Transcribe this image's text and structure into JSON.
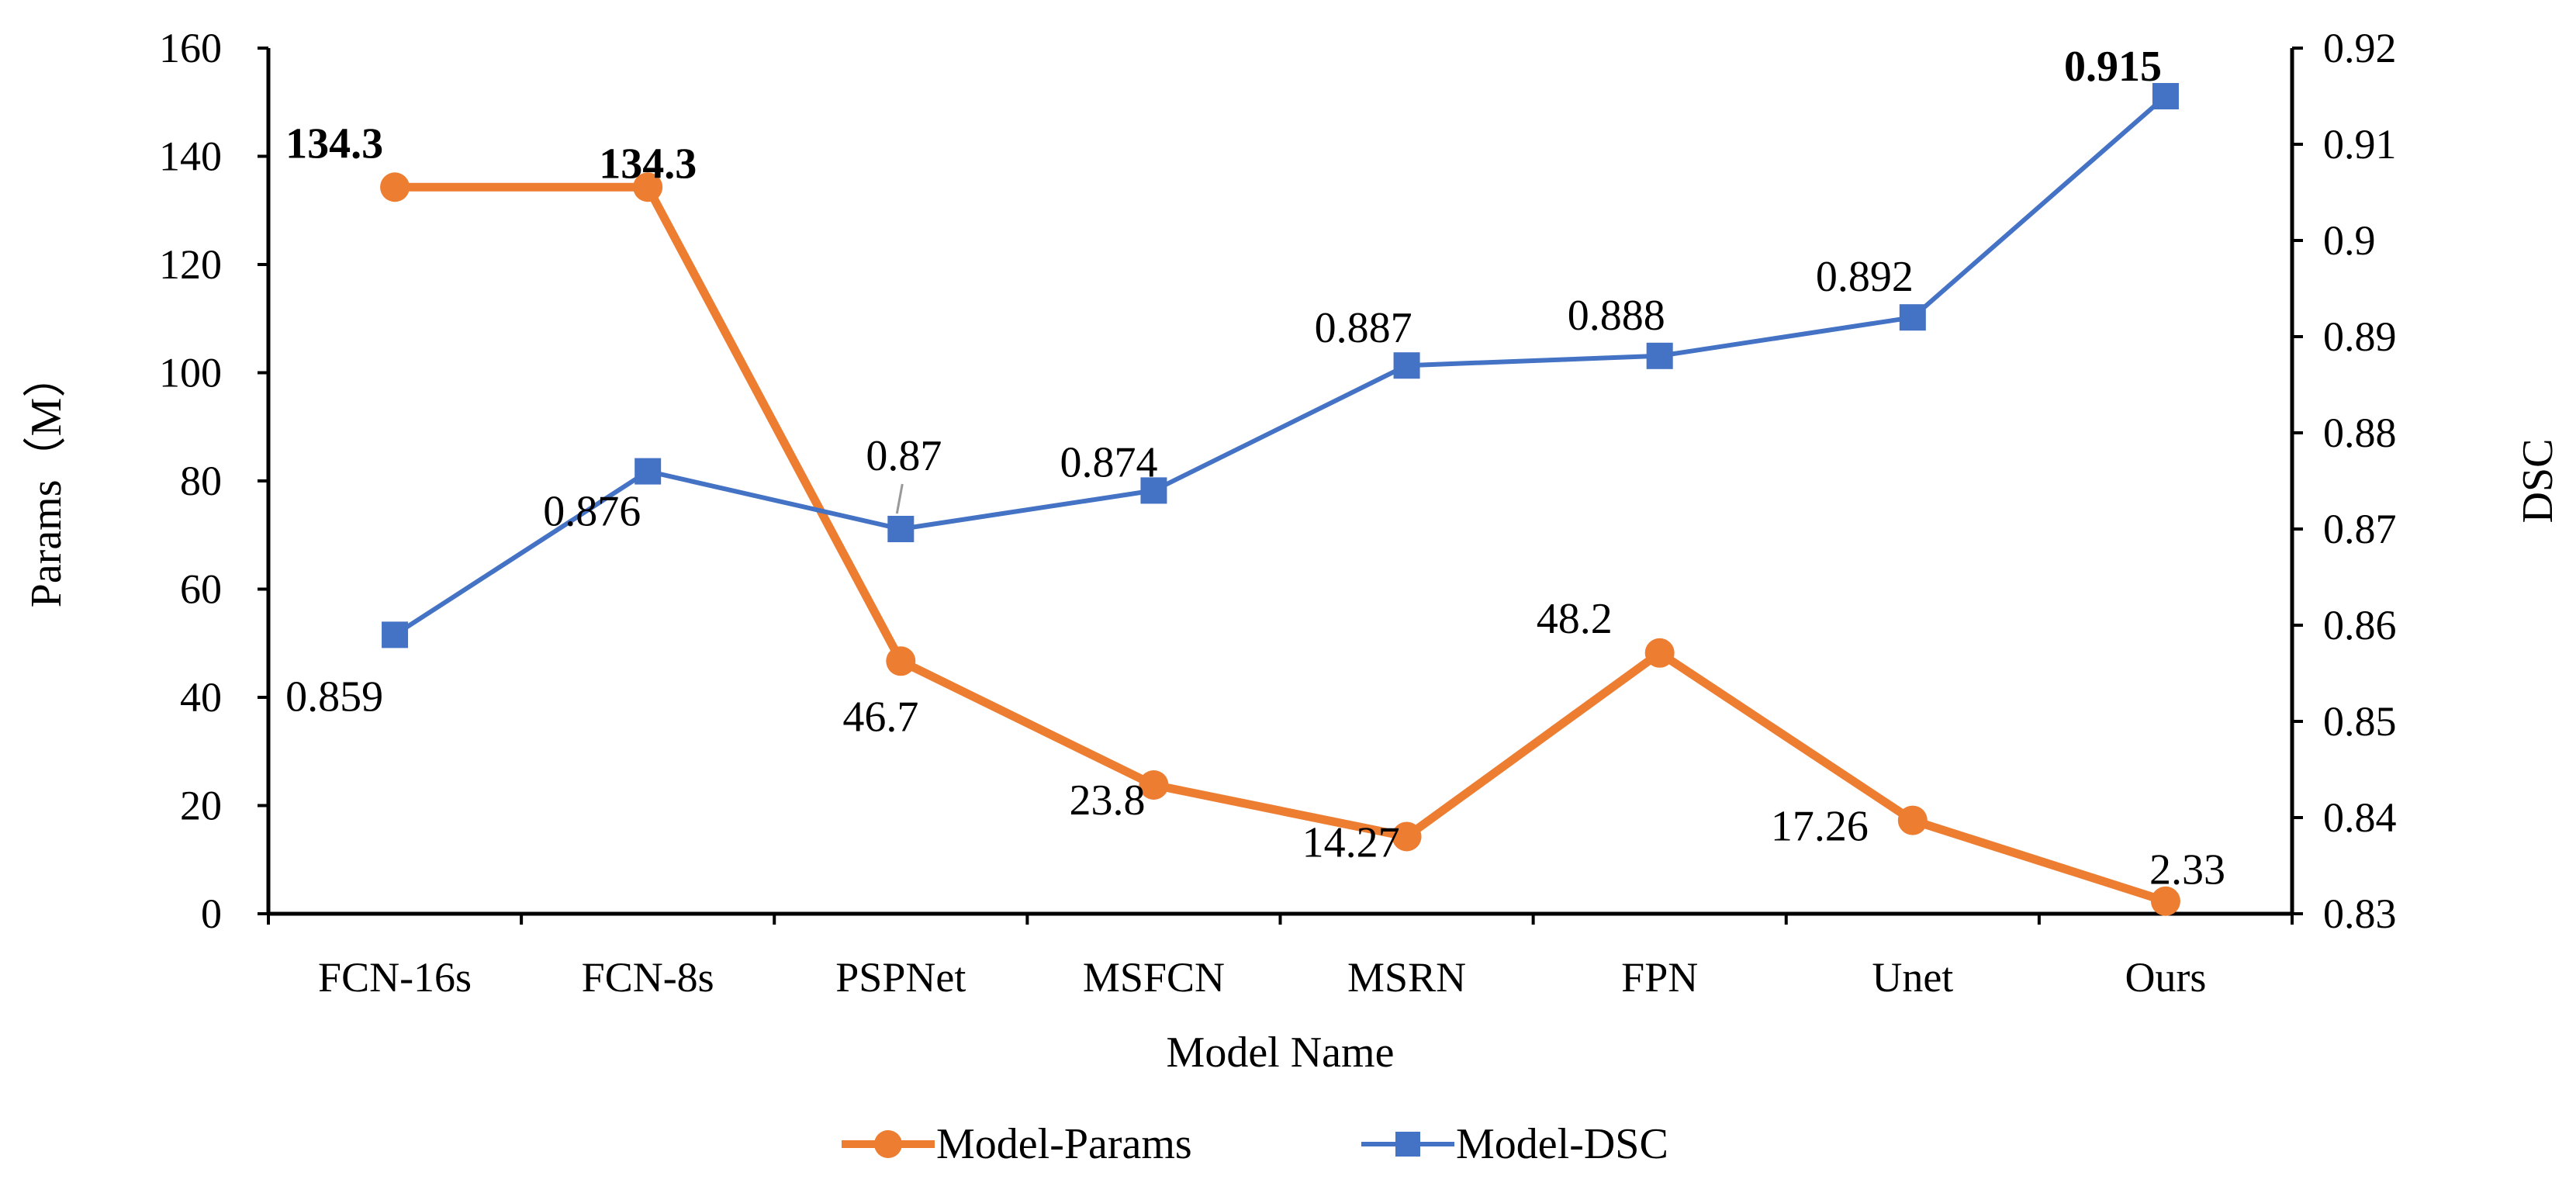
{
  "chart_data": {
    "type": "line",
    "categories": [
      "FCN-16s",
      "FCN-8s",
      "PSPNet",
      "MSFCN",
      "MSRN",
      "FPN",
      "Unet",
      "Ours"
    ],
    "xlabel": "Model Name",
    "ylabel_left": "Params（M）",
    "ylabel_right": "DSC",
    "ylim_left": [
      0,
      160
    ],
    "ylim_right": [
      0.83,
      0.92
    ],
    "yticks_left": [
      "0",
      "20",
      "40",
      "60",
      "80",
      "100",
      "120",
      "140",
      "160"
    ],
    "yticks_right": [
      "0.83",
      "0.84",
      "0.85",
      "0.86",
      "0.87",
      "0.88",
      "0.89",
      "0.9",
      "0.91",
      "0.92"
    ],
    "grid": false,
    "legend_position": "bottom",
    "series": [
      {
        "name": "Model-Params",
        "axis": "left",
        "color": "#ED7D31",
        "marker": "circle",
        "values": [
          134.3,
          134.3,
          46.7,
          23.8,
          14.27,
          48.2,
          17.26,
          2.33
        ],
        "labels": [
          "134.3",
          "134.3",
          "46.7",
          "23.8",
          "14.27",
          "48.2",
          "17.26",
          "2.33"
        ],
        "bold_labels": [
          true,
          true,
          false,
          false,
          false,
          false,
          false,
          false
        ]
      },
      {
        "name": "Model-DSC",
        "axis": "right",
        "color": "#4472C4",
        "marker": "square",
        "values": [
          0.859,
          0.876,
          0.87,
          0.874,
          0.887,
          0.888,
          0.892,
          0.915
        ],
        "labels": [
          "0.859",
          "0.876",
          "0.87",
          "0.874",
          "0.887",
          "0.888",
          "0.892",
          "0.915"
        ],
        "bold_labels": [
          false,
          false,
          false,
          false,
          false,
          false,
          false,
          true
        ]
      }
    ]
  }
}
